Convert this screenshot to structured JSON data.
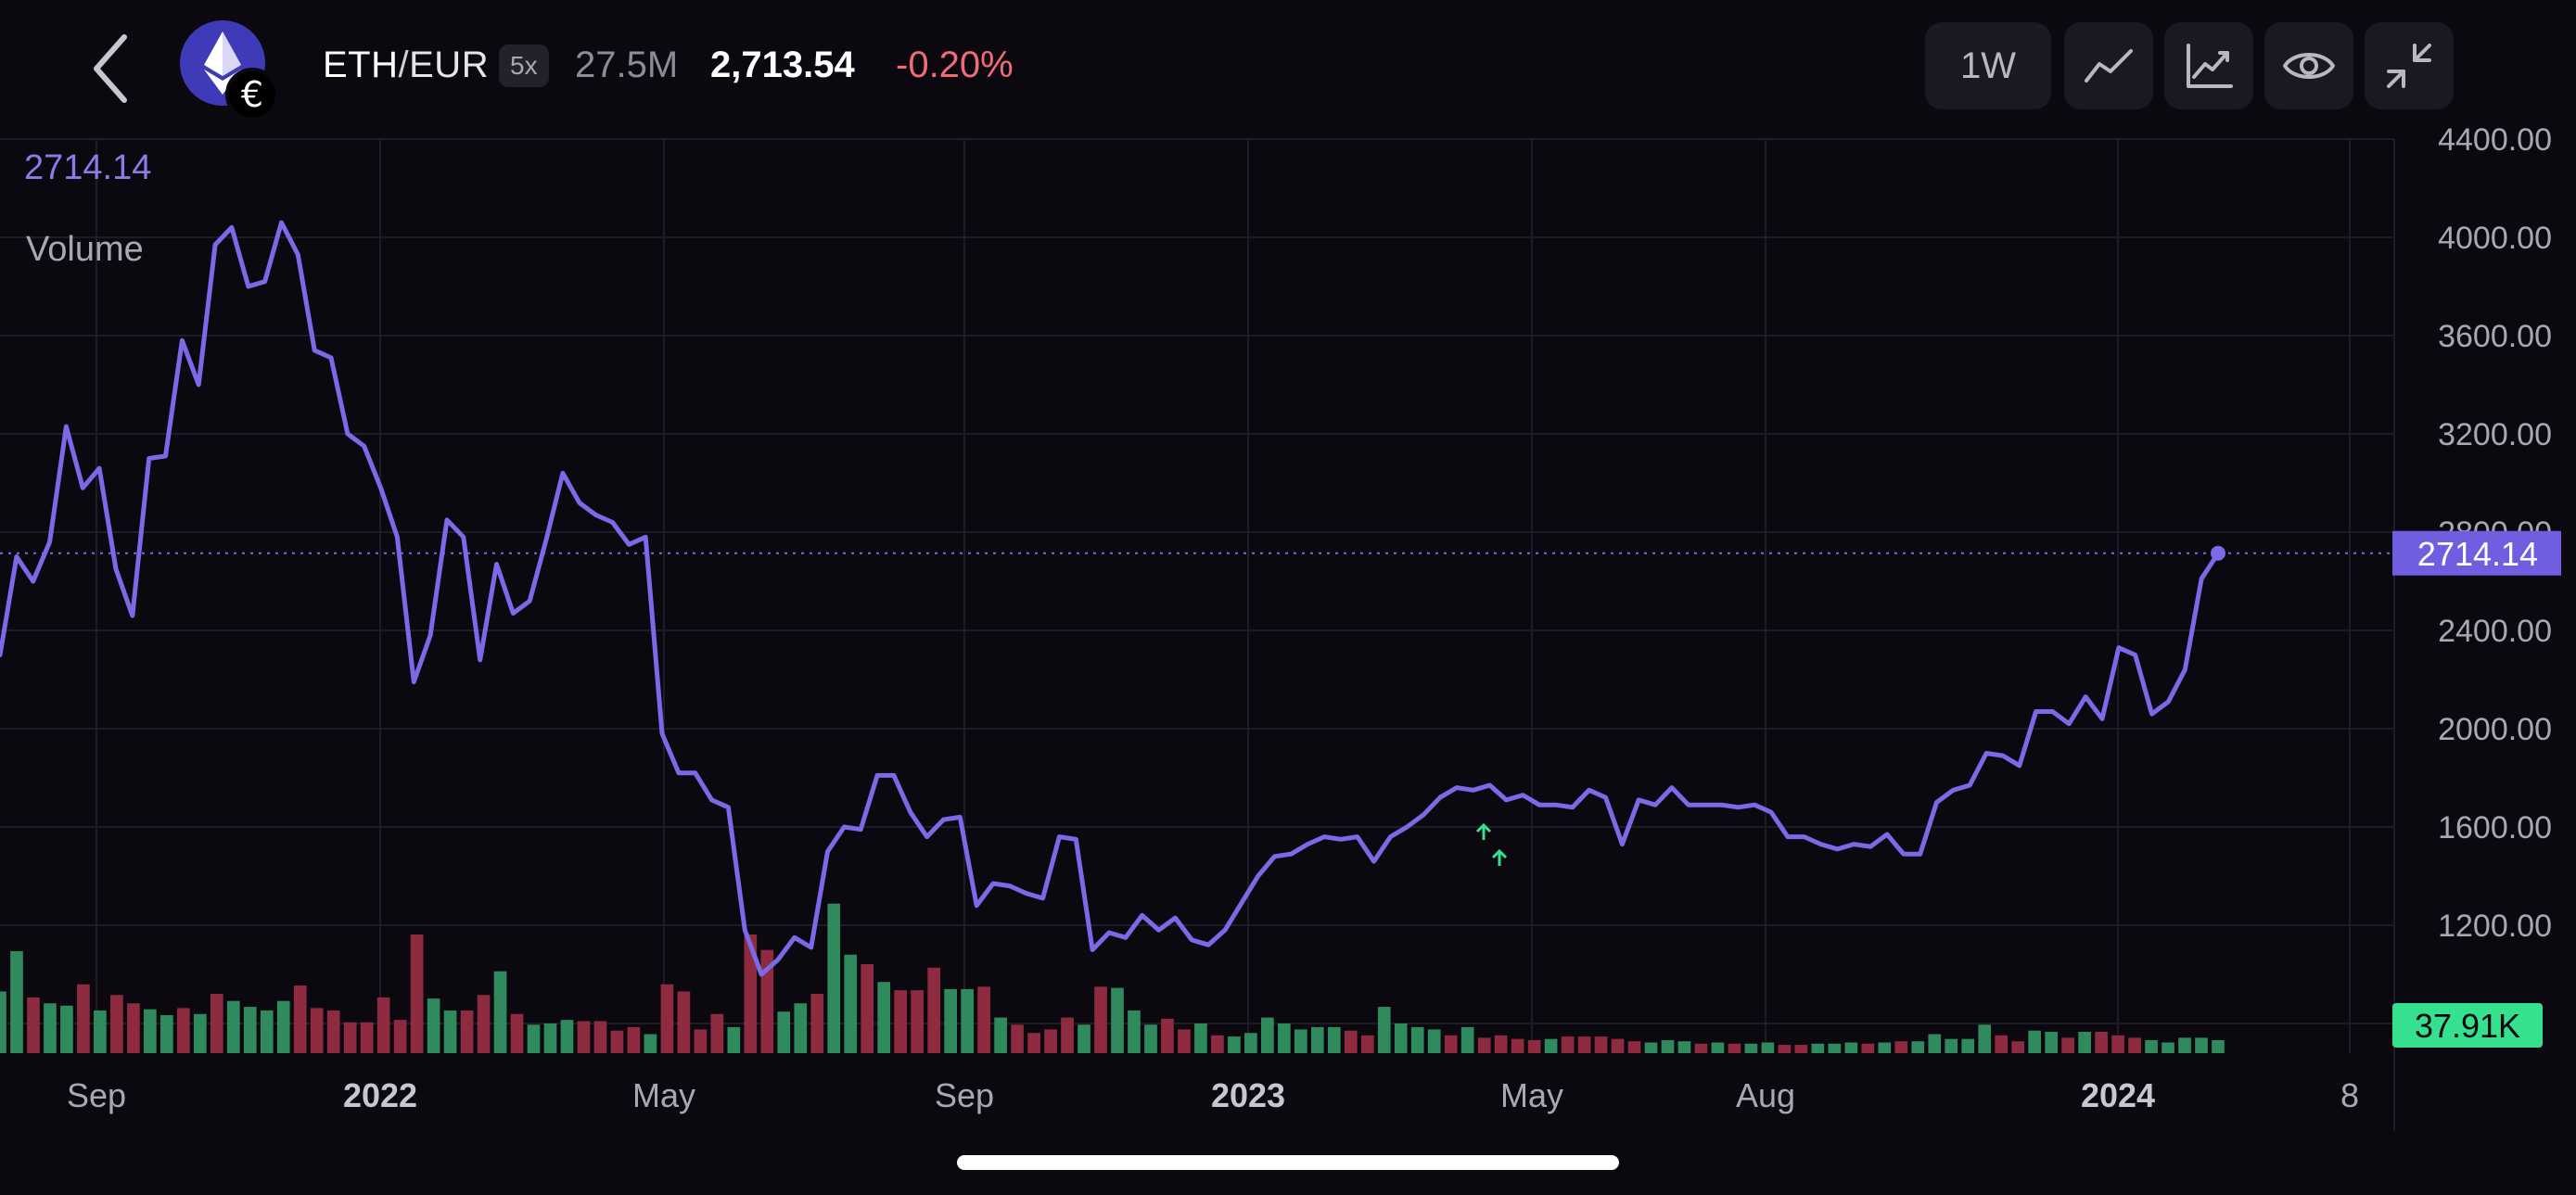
{
  "header": {
    "pair_base": "ETH",
    "pair_sep": "/",
    "pair_quote": "EUR",
    "leverage": "5x",
    "volume": "27.5M",
    "price": "2,713.54",
    "change": "-0.20%"
  },
  "toolbar": {
    "interval_label": "1W"
  },
  "icons": {
    "back": "chevron-left-icon",
    "coin": "ethereum-icon",
    "currency_badge": "euro-icon",
    "line_chart": "line-chart-icon",
    "indicators": "indicator-chart-icon",
    "visibility": "eye-icon",
    "collapse": "collapse-icon"
  },
  "colors": {
    "background": "#0b0810",
    "line": "#7b6ae8",
    "volume_up": "#2f8a5e",
    "volume_down": "#8f2b40",
    "negative": "#f06a78",
    "volume_badge": "#35e08e"
  },
  "overlay": {
    "price": "2714.14",
    "volume_label": "Volume"
  },
  "chart_data": {
    "type": "line",
    "x_ticks": [
      "Sep",
      "2022",
      "May",
      "Sep",
      "2023",
      "May",
      "Aug",
      "2024",
      "8"
    ],
    "y_ticks": [
      "4400.00",
      "4000.00",
      "3600.00",
      "3200.00",
      "2800.00",
      "2400.00",
      "2000.00",
      "1600.00",
      "1200.00"
    ],
    "ylim": [
      800,
      4400
    ],
    "grid": true,
    "current_price": "2714.14",
    "current_volume": "37.91K",
    "series": [
      {
        "values": [
          2300,
          2700,
          2600,
          2760,
          3230,
          2980,
          3060,
          2650,
          2460,
          3100,
          3110,
          3580,
          3400,
          3970,
          4040,
          3800,
          3820,
          4060,
          3930,
          3540,
          3510,
          3200,
          3150,
          2980,
          2780,
          2190,
          2380,
          2850,
          2780,
          2280,
          2670,
          2470,
          2520,
          2770,
          3040,
          2920,
          2870,
          2840,
          2750,
          2780,
          1980,
          1820,
          1820,
          1710,
          1680,
          1180,
          1000,
          1060,
          1150,
          1110,
          1500,
          1600,
          1590,
          1810,
          1810,
          1660,
          1560,
          1630,
          1640,
          1280,
          1370,
          1360,
          1330,
          1310,
          1560,
          1550,
          1100,
          1170,
          1150,
          1240,
          1180,
          1230,
          1140,
          1120,
          1180,
          1290,
          1400,
          1480,
          1490,
          1530,
          1560,
          1550,
          1560,
          1460,
          1560,
          1600,
          1650,
          1720,
          1760,
          1750,
          1770,
          1710,
          1730,
          1690,
          1690,
          1680,
          1750,
          1720,
          1530,
          1710,
          1690,
          1760,
          1690,
          1690,
          1690,
          1680,
          1690,
          1660,
          1560,
          1560,
          1530,
          1510,
          1530,
          1520,
          1570,
          1490,
          1490,
          1700,
          1750,
          1770,
          1900,
          1890,
          1850,
          2070,
          2070,
          2020,
          2130,
          2040,
          2330,
          2300,
          2060,
          2110,
          2240,
          2610,
          2714
        ]
      }
    ],
    "volume": [
      {
        "v": 0.52,
        "up": true
      },
      {
        "v": 0.86,
        "up": true
      },
      {
        "v": 0.47,
        "up": false
      },
      {
        "v": 0.42,
        "up": true
      },
      {
        "v": 0.4,
        "up": true
      },
      {
        "v": 0.58,
        "up": false
      },
      {
        "v": 0.36,
        "up": true
      },
      {
        "v": 0.49,
        "up": false
      },
      {
        "v": 0.42,
        "up": false
      },
      {
        "v": 0.37,
        "up": true
      },
      {
        "v": 0.32,
        "up": true
      },
      {
        "v": 0.38,
        "up": false
      },
      {
        "v": 0.33,
        "up": true
      },
      {
        "v": 0.5,
        "up": false
      },
      {
        "v": 0.44,
        "up": true
      },
      {
        "v": 0.39,
        "up": true
      },
      {
        "v": 0.36,
        "up": true
      },
      {
        "v": 0.44,
        "up": true
      },
      {
        "v": 0.57,
        "up": false
      },
      {
        "v": 0.38,
        "up": false
      },
      {
        "v": 0.36,
        "up": false
      },
      {
        "v": 0.26,
        "up": false
      },
      {
        "v": 0.26,
        "up": false
      },
      {
        "v": 0.47,
        "up": false
      },
      {
        "v": 0.28,
        "up": false
      },
      {
        "v": 1.0,
        "up": false
      },
      {
        "v": 0.46,
        "up": true
      },
      {
        "v": 0.36,
        "up": true
      },
      {
        "v": 0.36,
        "up": false
      },
      {
        "v": 0.49,
        "up": false
      },
      {
        "v": 0.69,
        "up": true
      },
      {
        "v": 0.33,
        "up": false
      },
      {
        "v": 0.24,
        "up": true
      },
      {
        "v": 0.25,
        "up": true
      },
      {
        "v": 0.28,
        "up": true
      },
      {
        "v": 0.27,
        "up": false
      },
      {
        "v": 0.27,
        "up": false
      },
      {
        "v": 0.19,
        "up": false
      },
      {
        "v": 0.22,
        "up": false
      },
      {
        "v": 0.16,
        "up": true
      },
      {
        "v": 0.58,
        "up": false
      },
      {
        "v": 0.52,
        "up": false
      },
      {
        "v": 0.2,
        "up": false
      },
      {
        "v": 0.33,
        "up": false
      },
      {
        "v": 0.22,
        "up": true
      },
      {
        "v": 1.0,
        "up": false
      },
      {
        "v": 0.87,
        "up": false
      },
      {
        "v": 0.35,
        "up": true
      },
      {
        "v": 0.42,
        "up": true
      },
      {
        "v": 0.5,
        "up": false
      },
      {
        "v": 1.26,
        "up": true
      },
      {
        "v": 0.83,
        "up": true
      },
      {
        "v": 0.75,
        "up": false
      },
      {
        "v": 0.6,
        "up": true
      },
      {
        "v": 0.53,
        "up": false
      },
      {
        "v": 0.53,
        "up": false
      },
      {
        "v": 0.72,
        "up": false
      },
      {
        "v": 0.54,
        "up": true
      },
      {
        "v": 0.54,
        "up": true
      },
      {
        "v": 0.56,
        "up": false
      },
      {
        "v": 0.3,
        "up": true
      },
      {
        "v": 0.24,
        "up": false
      },
      {
        "v": 0.17,
        "up": false
      },
      {
        "v": 0.2,
        "up": false
      },
      {
        "v": 0.3,
        "up": false
      },
      {
        "v": 0.24,
        "up": true
      },
      {
        "v": 0.56,
        "up": false
      },
      {
        "v": 0.55,
        "up": true
      },
      {
        "v": 0.36,
        "up": true
      },
      {
        "v": 0.24,
        "up": true
      },
      {
        "v": 0.29,
        "up": false
      },
      {
        "v": 0.2,
        "up": false
      },
      {
        "v": 0.25,
        "up": true
      },
      {
        "v": 0.15,
        "up": false
      },
      {
        "v": 0.14,
        "up": true
      },
      {
        "v": 0.17,
        "up": true
      },
      {
        "v": 0.3,
        "up": true
      },
      {
        "v": 0.25,
        "up": true
      },
      {
        "v": 0.2,
        "up": true
      },
      {
        "v": 0.22,
        "up": true
      },
      {
        "v": 0.22,
        "up": true
      },
      {
        "v": 0.19,
        "up": false
      },
      {
        "v": 0.15,
        "up": false
      },
      {
        "v": 0.39,
        "up": true
      },
      {
        "v": 0.25,
        "up": true
      },
      {
        "v": 0.22,
        "up": true
      },
      {
        "v": 0.2,
        "up": true
      },
      {
        "v": 0.15,
        "up": false
      },
      {
        "v": 0.22,
        "up": true
      },
      {
        "v": 0.13,
        "up": false
      },
      {
        "v": 0.15,
        "up": false
      },
      {
        "v": 0.12,
        "up": false
      },
      {
        "v": 0.11,
        "up": false
      },
      {
        "v": 0.12,
        "up": true
      },
      {
        "v": 0.14,
        "up": false
      },
      {
        "v": 0.14,
        "up": false
      },
      {
        "v": 0.14,
        "up": false
      },
      {
        "v": 0.12,
        "up": false
      },
      {
        "v": 0.1,
        "up": false
      },
      {
        "v": 0.09,
        "up": true
      },
      {
        "v": 0.11,
        "up": true
      },
      {
        "v": 0.1,
        "up": true
      },
      {
        "v": 0.08,
        "up": false
      },
      {
        "v": 0.09,
        "up": true
      },
      {
        "v": 0.08,
        "up": false
      },
      {
        "v": 0.08,
        "up": true
      },
      {
        "v": 0.09,
        "up": true
      },
      {
        "v": 0.07,
        "up": false
      },
      {
        "v": 0.07,
        "up": false
      },
      {
        "v": 0.08,
        "up": true
      },
      {
        "v": 0.08,
        "up": true
      },
      {
        "v": 0.09,
        "up": true
      },
      {
        "v": 0.08,
        "up": false
      },
      {
        "v": 0.09,
        "up": true
      },
      {
        "v": 0.1,
        "up": false
      },
      {
        "v": 0.1,
        "up": true
      },
      {
        "v": 0.16,
        "up": true
      },
      {
        "v": 0.12,
        "up": true
      },
      {
        "v": 0.12,
        "up": true
      },
      {
        "v": 0.24,
        "up": true
      },
      {
        "v": 0.15,
        "up": false
      },
      {
        "v": 0.1,
        "up": false
      },
      {
        "v": 0.19,
        "up": true
      },
      {
        "v": 0.18,
        "up": true
      },
      {
        "v": 0.13,
        "up": false
      },
      {
        "v": 0.18,
        "up": true
      },
      {
        "v": 0.18,
        "up": false
      },
      {
        "v": 0.15,
        "up": false
      },
      {
        "v": 0.13,
        "up": false
      },
      {
        "v": 0.11,
        "up": true
      },
      {
        "v": 0.09,
        "up": true
      },
      {
        "v": 0.13,
        "up": true
      },
      {
        "v": 0.13,
        "up": true
      },
      {
        "v": 0.11,
        "up": true
      }
    ]
  }
}
